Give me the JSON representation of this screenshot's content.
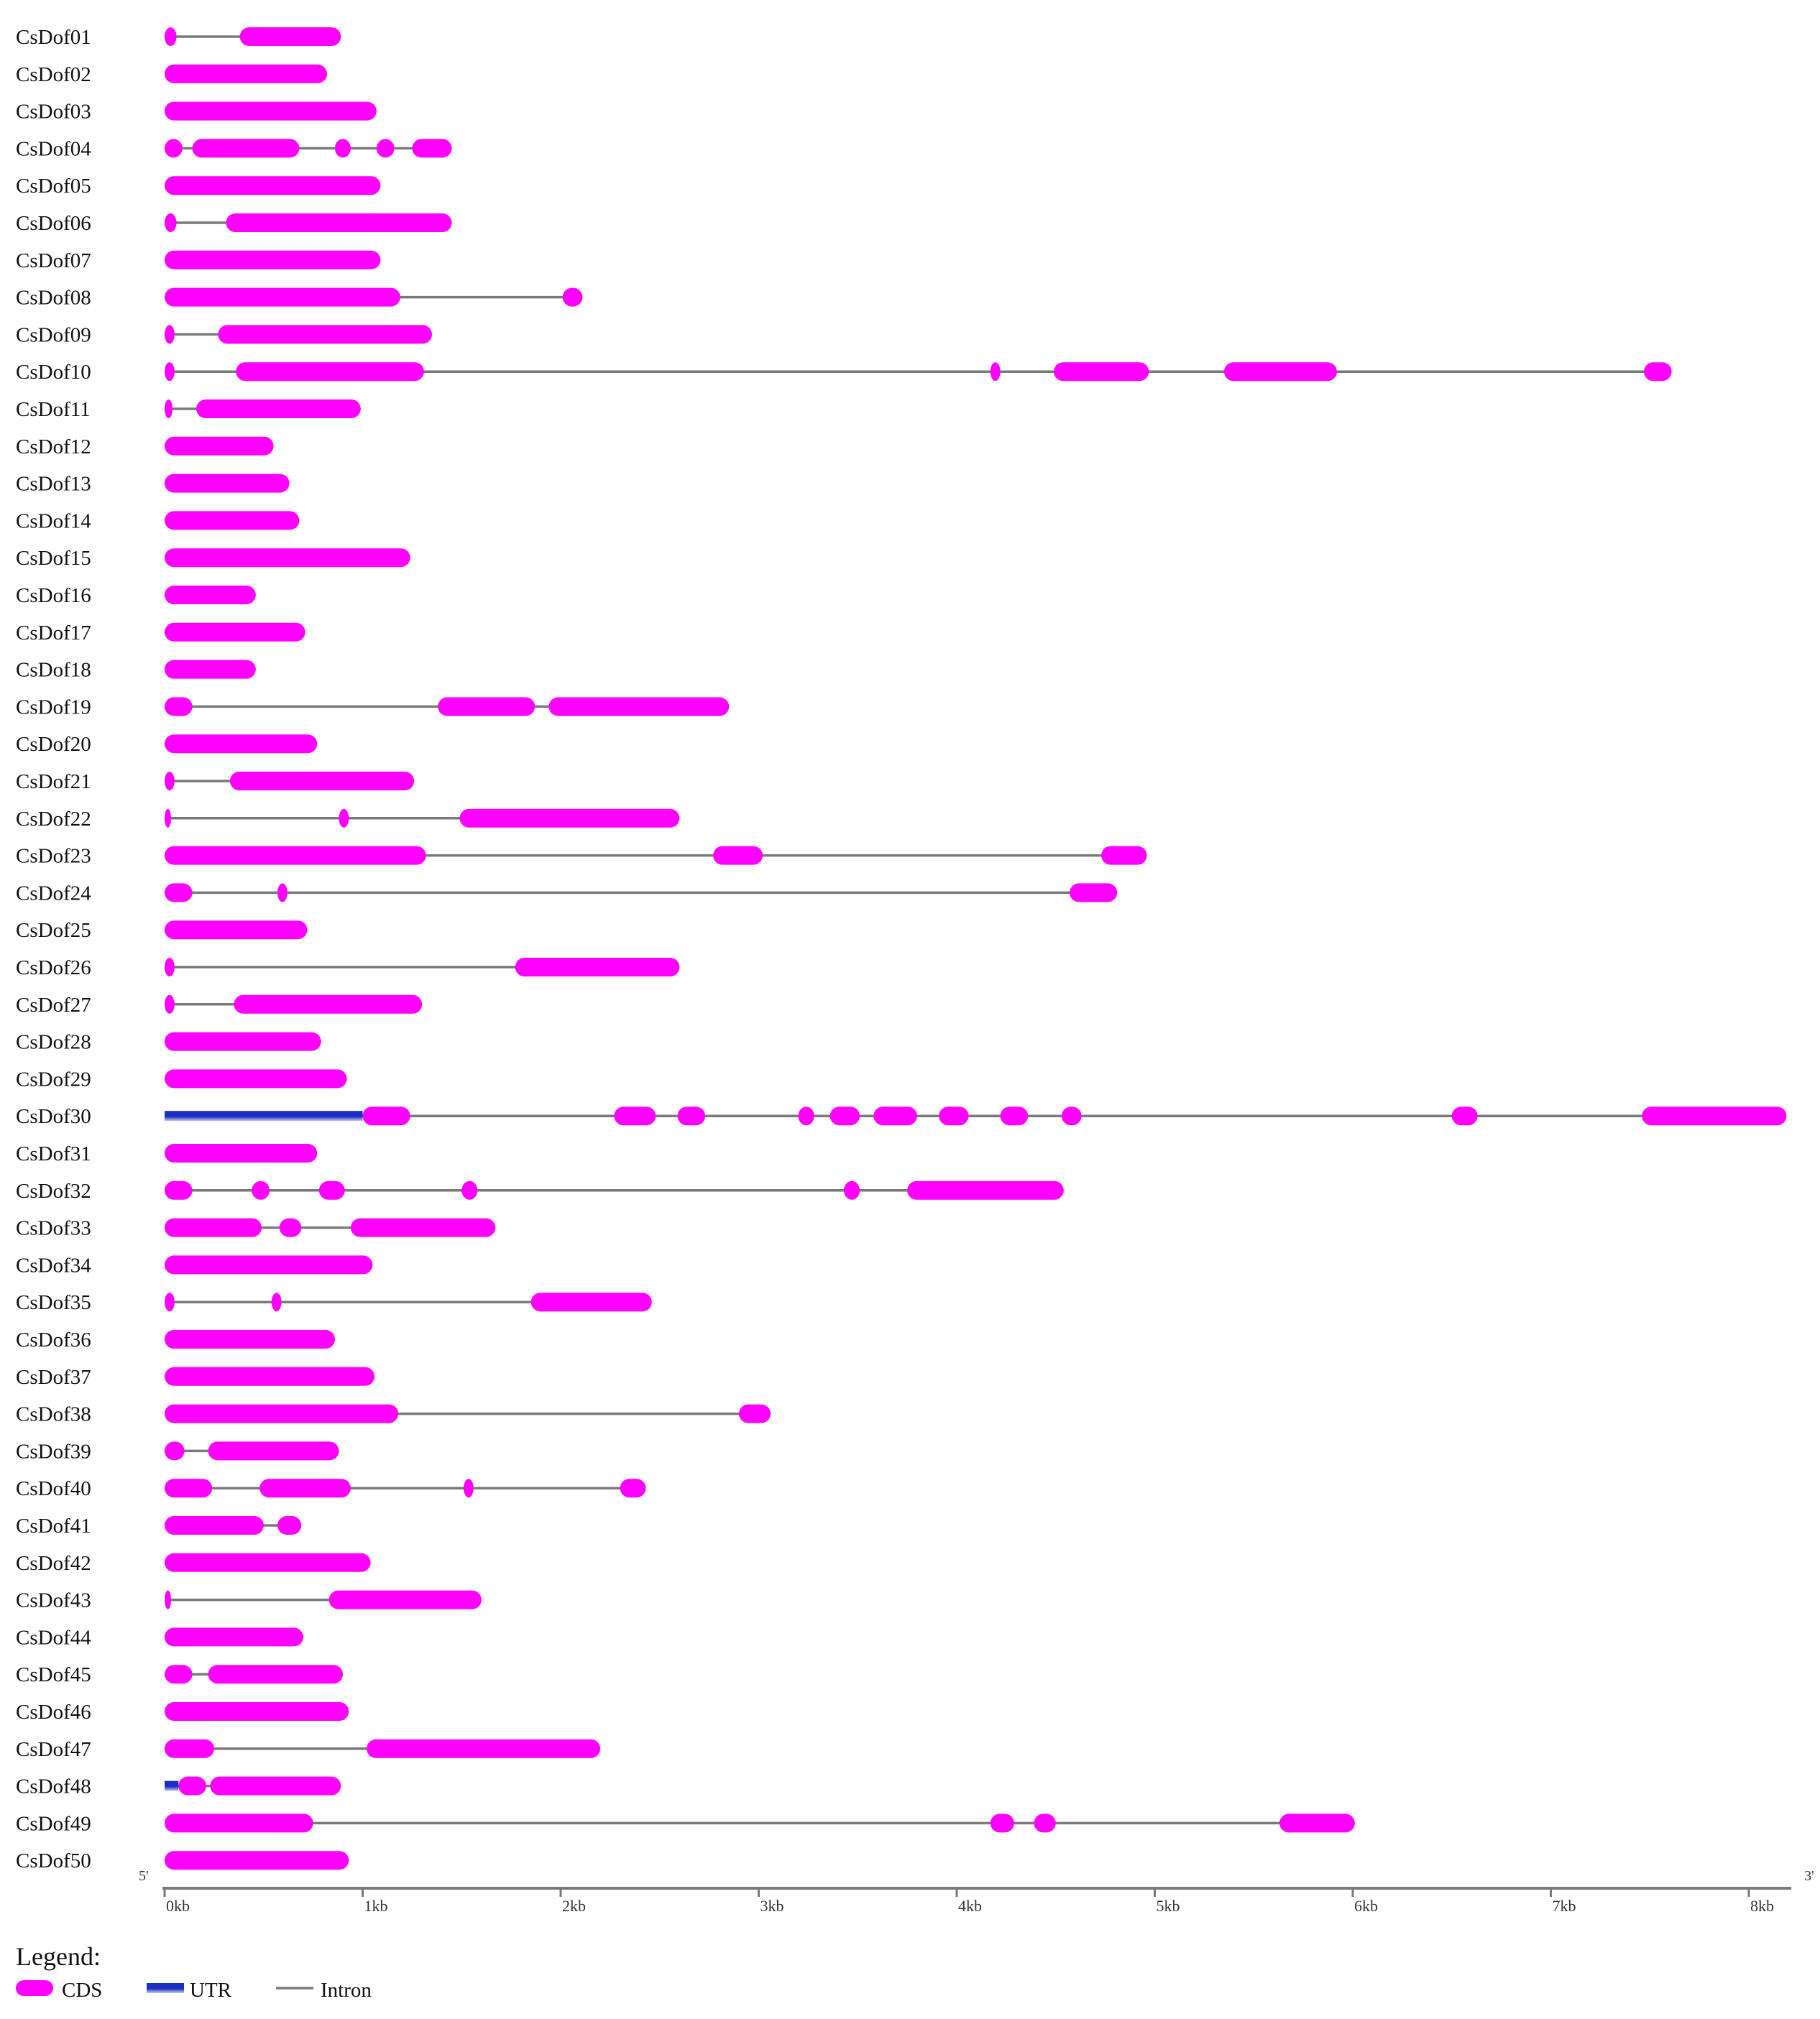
{
  "chart_data": {
    "type": "gene-structure",
    "x_unit": "kb",
    "xlim": [
      0,
      8.2
    ],
    "ticks": [
      {
        "value": 0,
        "label": "0kb"
      },
      {
        "value": 1,
        "label": "1kb"
      },
      {
        "value": 2,
        "label": "2kb"
      },
      {
        "value": 3,
        "label": "3kb"
      },
      {
        "value": 4,
        "label": "4kb"
      },
      {
        "value": 5,
        "label": "5kb"
      },
      {
        "value": 6,
        "label": "6kb"
      },
      {
        "value": 7,
        "label": "7kb"
      },
      {
        "value": 8,
        "label": "8kb"
      }
    ],
    "end_labels": {
      "left": "5'",
      "right": "3'"
    },
    "colors": {
      "cds": "#ff00ff",
      "utr_dark": "#1a2fc4",
      "utr_light": "#c8ccf0",
      "intron": "#7a7a7a",
      "axis": "#7a7a7a"
    },
    "genes": [
      {
        "name": "CsDof01",
        "cds": [
          [
            0.0,
            0.06
          ],
          [
            0.38,
            0.89
          ]
        ],
        "utr": []
      },
      {
        "name": "CsDof02",
        "cds": [
          [
            0.0,
            0.82
          ]
        ],
        "utr": []
      },
      {
        "name": "CsDof03",
        "cds": [
          [
            0.0,
            1.07
          ]
        ],
        "utr": []
      },
      {
        "name": "CsDof04",
        "cds": [
          [
            0.0,
            0.09
          ],
          [
            0.14,
            0.68
          ],
          [
            0.86,
            0.94
          ],
          [
            1.07,
            1.16
          ],
          [
            1.25,
            1.45
          ]
        ],
        "utr": []
      },
      {
        "name": "CsDof05",
        "cds": [
          [
            0.0,
            1.09
          ]
        ],
        "utr": []
      },
      {
        "name": "CsDof06",
        "cds": [
          [
            0.0,
            0.06
          ],
          [
            0.31,
            1.45
          ]
        ],
        "utr": []
      },
      {
        "name": "CsDof07",
        "cds": [
          [
            0.0,
            1.09
          ]
        ],
        "utr": []
      },
      {
        "name": "CsDof08",
        "cds": [
          [
            0.0,
            1.19
          ],
          [
            2.01,
            2.11
          ]
        ],
        "utr": []
      },
      {
        "name": "CsDof09",
        "cds": [
          [
            0.0,
            0.05
          ],
          [
            0.27,
            1.35
          ]
        ],
        "utr": []
      },
      {
        "name": "CsDof10",
        "cds": [
          [
            0.0,
            0.05
          ],
          [
            0.36,
            1.31
          ],
          [
            4.17,
            4.22
          ],
          [
            4.49,
            4.97
          ],
          [
            5.35,
            5.92
          ],
          [
            7.47,
            7.61
          ]
        ],
        "utr": []
      },
      {
        "name": "CsDof11",
        "cds": [
          [
            0.0,
            0.04
          ],
          [
            0.16,
            0.99
          ]
        ],
        "utr": []
      },
      {
        "name": "CsDof12",
        "cds": [
          [
            0.0,
            0.55
          ]
        ],
        "utr": []
      },
      {
        "name": "CsDof13",
        "cds": [
          [
            0.0,
            0.63
          ]
        ],
        "utr": []
      },
      {
        "name": "CsDof14",
        "cds": [
          [
            0.0,
            0.68
          ]
        ],
        "utr": []
      },
      {
        "name": "CsDof15",
        "cds": [
          [
            0.0,
            1.24
          ]
        ],
        "utr": []
      },
      {
        "name": "CsDof16",
        "cds": [
          [
            0.0,
            0.46
          ]
        ],
        "utr": []
      },
      {
        "name": "CsDof17",
        "cds": [
          [
            0.0,
            0.71
          ]
        ],
        "utr": []
      },
      {
        "name": "CsDof18",
        "cds": [
          [
            0.0,
            0.46
          ]
        ],
        "utr": []
      },
      {
        "name": "CsDof19",
        "cds": [
          [
            0.0,
            0.14
          ],
          [
            1.38,
            1.87
          ],
          [
            1.94,
            2.85
          ]
        ],
        "utr": []
      },
      {
        "name": "CsDof20",
        "cds": [
          [
            0.0,
            0.77
          ]
        ],
        "utr": []
      },
      {
        "name": "CsDof21",
        "cds": [
          [
            0.0,
            0.05
          ],
          [
            0.33,
            1.26
          ]
        ],
        "utr": []
      },
      {
        "name": "CsDof22",
        "cds": [
          [
            0.0,
            0.03
          ],
          [
            0.88,
            0.93
          ],
          [
            1.49,
            2.6
          ]
        ],
        "utr": []
      },
      {
        "name": "CsDof23",
        "cds": [
          [
            0.0,
            1.32
          ],
          [
            2.77,
            3.02
          ],
          [
            4.73,
            4.96
          ]
        ],
        "utr": []
      },
      {
        "name": "CsDof24",
        "cds": [
          [
            0.0,
            0.14
          ],
          [
            0.57,
            0.62
          ],
          [
            4.57,
            4.81
          ]
        ],
        "utr": []
      },
      {
        "name": "CsDof25",
        "cds": [
          [
            0.0,
            0.72
          ]
        ],
        "utr": []
      },
      {
        "name": "CsDof26",
        "cds": [
          [
            0.0,
            0.05
          ],
          [
            1.77,
            2.6
          ]
        ],
        "utr": []
      },
      {
        "name": "CsDof27",
        "cds": [
          [
            0.0,
            0.05
          ],
          [
            0.35,
            1.3
          ]
        ],
        "utr": []
      },
      {
        "name": "CsDof28",
        "cds": [
          [
            0.0,
            0.79
          ]
        ],
        "utr": []
      },
      {
        "name": "CsDof29",
        "cds": [
          [
            0.0,
            0.92
          ]
        ],
        "utr": []
      },
      {
        "name": "CsDof30",
        "cds": [
          [
            1.0,
            1.24
          ],
          [
            2.27,
            2.48
          ],
          [
            2.59,
            2.73
          ],
          [
            3.2,
            3.28
          ],
          [
            3.36,
            3.51
          ],
          [
            3.58,
            3.8
          ],
          [
            3.91,
            4.06
          ],
          [
            4.22,
            4.36
          ],
          [
            4.53,
            4.63
          ],
          [
            6.5,
            6.63
          ],
          [
            7.46,
            8.19
          ]
        ],
        "utr": [
          [
            0.0,
            1.0
          ]
        ]
      },
      {
        "name": "CsDof31",
        "cds": [
          [
            0.0,
            0.77
          ]
        ],
        "utr": []
      },
      {
        "name": "CsDof32",
        "cds": [
          [
            0.0,
            0.14
          ],
          [
            0.44,
            0.53
          ],
          [
            0.78,
            0.91
          ],
          [
            1.5,
            1.58
          ],
          [
            3.43,
            3.51
          ],
          [
            3.75,
            4.54
          ]
        ],
        "utr": []
      },
      {
        "name": "CsDof33",
        "cds": [
          [
            0.0,
            0.49
          ],
          [
            0.58,
            0.69
          ],
          [
            0.94,
            1.67
          ]
        ],
        "utr": []
      },
      {
        "name": "CsDof34",
        "cds": [
          [
            0.0,
            1.05
          ]
        ],
        "utr": []
      },
      {
        "name": "CsDof35",
        "cds": [
          [
            0.0,
            0.05
          ],
          [
            0.54,
            0.59
          ],
          [
            1.85,
            2.46
          ]
        ],
        "utr": []
      },
      {
        "name": "CsDof36",
        "cds": [
          [
            0.0,
            0.86
          ]
        ],
        "utr": []
      },
      {
        "name": "CsDof37",
        "cds": [
          [
            0.0,
            1.06
          ]
        ],
        "utr": []
      },
      {
        "name": "CsDof38",
        "cds": [
          [
            0.0,
            1.18
          ],
          [
            2.9,
            3.06
          ]
        ],
        "utr": []
      },
      {
        "name": "CsDof39",
        "cds": [
          [
            0.0,
            0.1
          ],
          [
            0.22,
            0.88
          ]
        ],
        "utr": []
      },
      {
        "name": "CsDof40",
        "cds": [
          [
            0.0,
            0.24
          ],
          [
            0.48,
            0.94
          ],
          [
            1.51,
            1.56
          ],
          [
            2.3,
            2.43
          ]
        ],
        "utr": []
      },
      {
        "name": "CsDof41",
        "cds": [
          [
            0.0,
            0.5
          ],
          [
            0.57,
            0.69
          ]
        ],
        "utr": []
      },
      {
        "name": "CsDof42",
        "cds": [
          [
            0.0,
            1.04
          ]
        ],
        "utr": []
      },
      {
        "name": "CsDof43",
        "cds": [
          [
            0.0,
            0.03
          ],
          [
            0.83,
            1.6
          ]
        ],
        "utr": []
      },
      {
        "name": "CsDof44",
        "cds": [
          [
            0.0,
            0.7
          ]
        ],
        "utr": []
      },
      {
        "name": "CsDof45",
        "cds": [
          [
            0.0,
            0.14
          ],
          [
            0.22,
            0.9
          ]
        ],
        "utr": []
      },
      {
        "name": "CsDof46",
        "cds": [
          [
            0.0,
            0.93
          ]
        ],
        "utr": []
      },
      {
        "name": "CsDof47",
        "cds": [
          [
            0.0,
            0.25
          ],
          [
            1.02,
            2.2
          ]
        ],
        "utr": []
      },
      {
        "name": "CsDof48",
        "cds": [
          [
            0.07,
            0.21
          ],
          [
            0.23,
            0.89
          ]
        ],
        "utr": [
          [
            0.0,
            0.07
          ]
        ]
      },
      {
        "name": "CsDof49",
        "cds": [
          [
            0.0,
            0.75
          ],
          [
            4.17,
            4.29
          ],
          [
            4.39,
            4.5
          ],
          [
            5.63,
            6.01
          ]
        ],
        "utr": []
      },
      {
        "name": "CsDof50",
        "cds": [
          [
            0.0,
            0.93
          ]
        ],
        "utr": []
      }
    ],
    "legend": {
      "title": "Legend:",
      "items": [
        {
          "key": "cds",
          "label": "CDS"
        },
        {
          "key": "utr",
          "label": "UTR"
        },
        {
          "key": "intron",
          "label": "Intron"
        }
      ]
    }
  }
}
